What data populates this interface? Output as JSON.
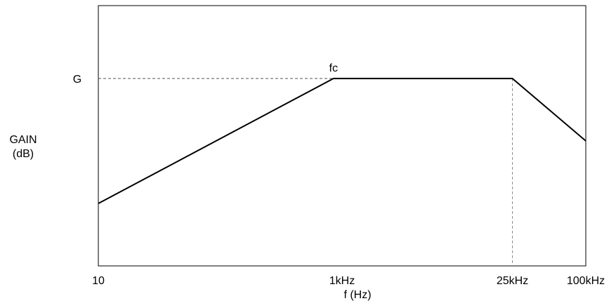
{
  "chart_data": {
    "type": "line",
    "title": "",
    "xlabel": "f (Hz)",
    "ylabel_lines": [
      "GAIN",
      "(dB)"
    ],
    "x_scale": "log",
    "xlim": [
      10,
      100000
    ],
    "x_ticks": [
      {
        "value": 10,
        "label": "10"
      },
      {
        "value": 1000,
        "label": "1kHz"
      },
      {
        "value": 25000,
        "label": "25kHz"
      },
      {
        "value": 100000,
        "label": "100kHz"
      }
    ],
    "series": [
      {
        "x": [
          10,
          850,
          25000,
          100000
        ],
        "y": [
          0.24,
          0.72,
          0.72,
          0.48
        ]
      }
    ],
    "annotations": {
      "gain_label": "G",
      "gain_level": 0.72,
      "corner_label": "fc",
      "corner_x": 850,
      "upper_corner_x": 25000
    },
    "grid": false,
    "legend": "none",
    "colors": {
      "line": "#000000",
      "axis": "#000000",
      "dashed": "#555555"
    }
  }
}
